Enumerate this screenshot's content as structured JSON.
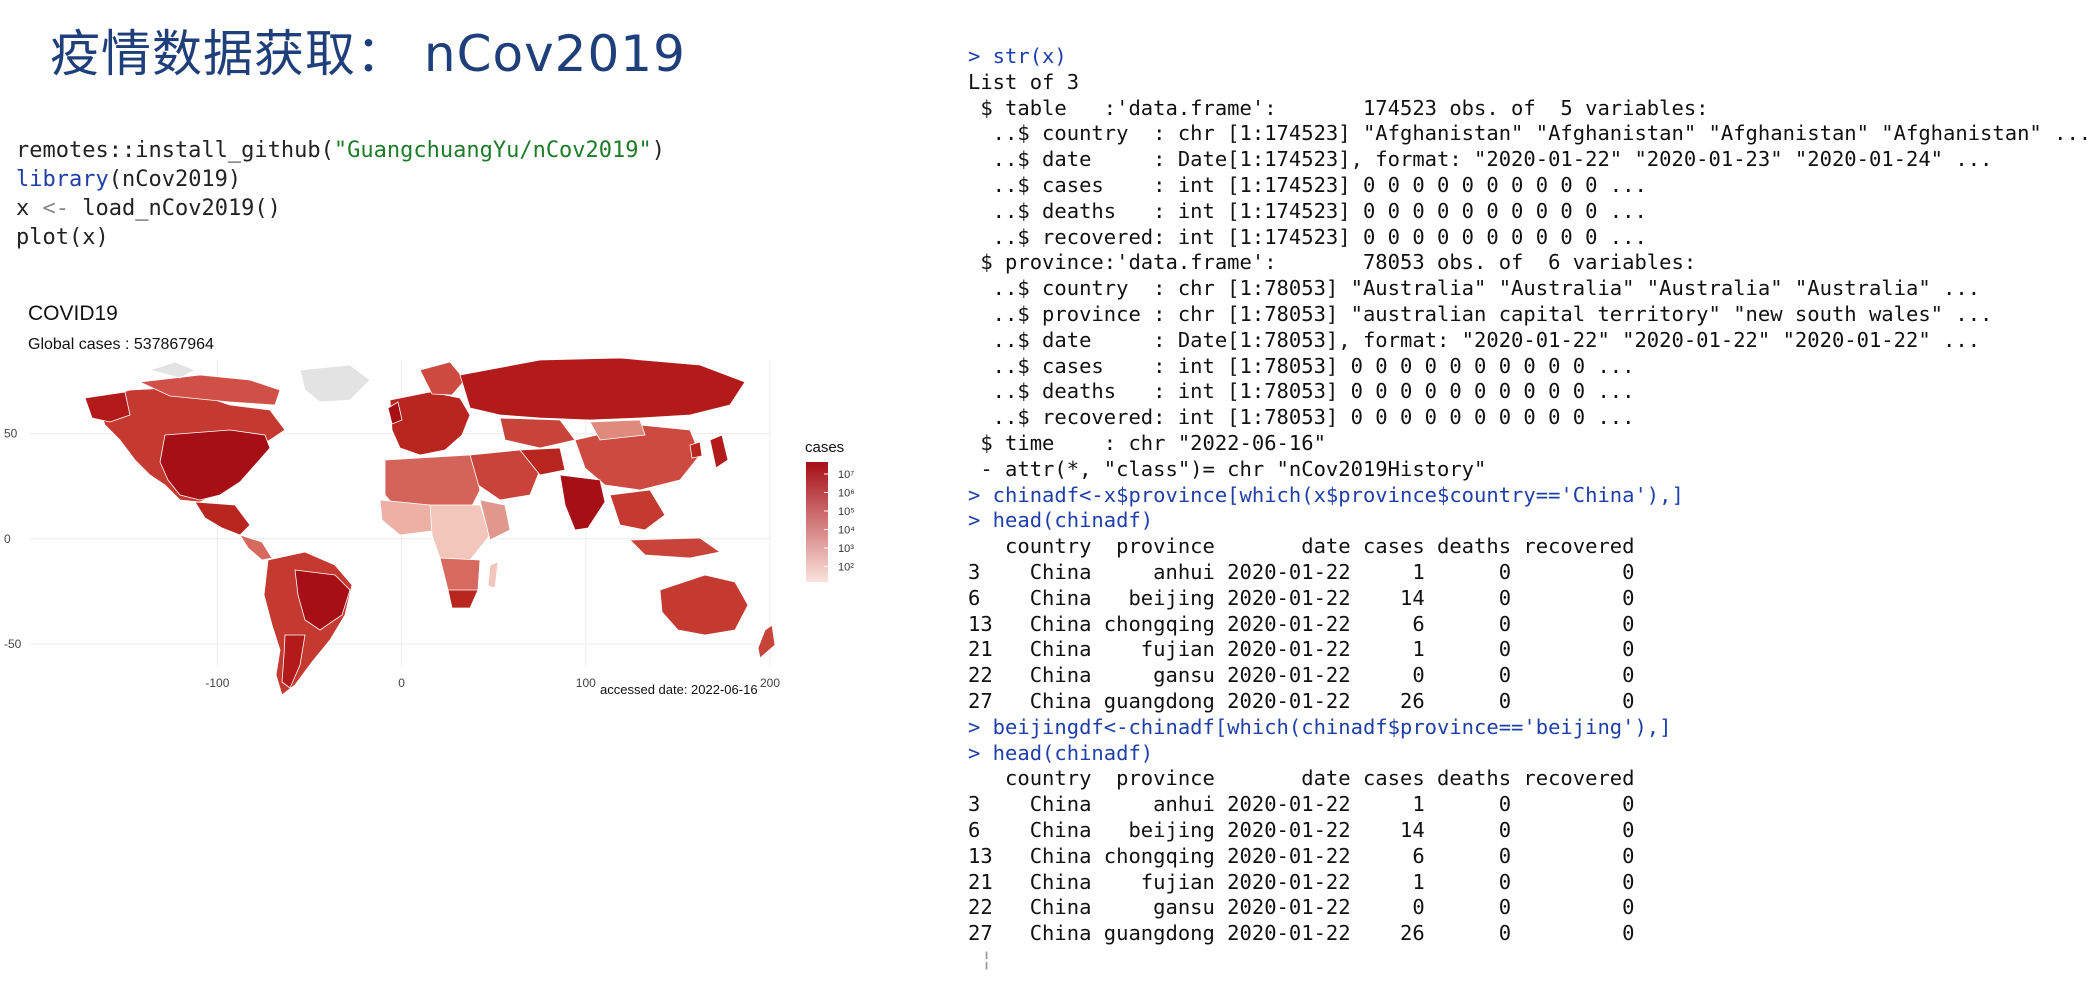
{
  "slide": {
    "title": "疫情数据获取： nCov2019"
  },
  "code": {
    "line1_fn": "remotes::install_github(",
    "line1_str": "\"GuangchuangYu/nCov2019\"",
    "line1_end": ")",
    "line2_kw": "library",
    "line2_rest": "(nCov2019)",
    "line3_a": "x ",
    "line3_op": "<-",
    "line3_b": " load_nCov2019()",
    "line4": "plot(x)"
  },
  "chart_data": {
    "type": "choropleth-map",
    "title": "COVID19",
    "subtitle": "Global cases : 537867964",
    "caption": "accessed date: 2022-06-16",
    "legend_title": "cases",
    "legend_placement": "right",
    "legend_ticks": [
      "10⁷",
      "10⁶",
      "10⁵",
      "10⁴",
      "10³",
      "10²"
    ],
    "color_scale": {
      "low": "#fbe3dd",
      "high": "#a50f15",
      "log10": true
    },
    "x_ticks": [
      -100,
      0,
      100,
      200
    ],
    "y_ticks": [
      50,
      0,
      -50
    ],
    "xlim": [
      -180,
      200
    ],
    "ylim": [
      -60,
      85
    ],
    "grid": true
  },
  "console": {
    "lines": [
      {
        "kind": "cmd",
        "text": "> str(x)"
      },
      {
        "kind": "out",
        "text": "List of 3"
      },
      {
        "kind": "out",
        "text": " $ table   :'data.frame':\t174523 obs. of  5 variables:"
      },
      {
        "kind": "out",
        "text": "  ..$ country  : chr [1:174523] \"Afghanistan\" \"Afghanistan\" \"Afghanistan\" \"Afghanistan\" ..."
      },
      {
        "kind": "out",
        "text": "  ..$ date     : Date[1:174523], format: \"2020-01-22\" \"2020-01-23\" \"2020-01-24\" ..."
      },
      {
        "kind": "out",
        "text": "  ..$ cases    : int [1:174523] 0 0 0 0 0 0 0 0 0 0 ..."
      },
      {
        "kind": "out",
        "text": "  ..$ deaths   : int [1:174523] 0 0 0 0 0 0 0 0 0 0 ..."
      },
      {
        "kind": "out",
        "text": "  ..$ recovered: int [1:174523] 0 0 0 0 0 0 0 0 0 0 ..."
      },
      {
        "kind": "out",
        "text": " $ province:'data.frame':\t78053 obs. of  6 variables:"
      },
      {
        "kind": "out",
        "text": "  ..$ country  : chr [1:78053] \"Australia\" \"Australia\" \"Australia\" \"Australia\" ..."
      },
      {
        "kind": "out",
        "text": "  ..$ province : chr [1:78053] \"australian capital territory\" \"new south wales\" ..."
      },
      {
        "kind": "out",
        "text": "  ..$ date     : Date[1:78053], format: \"2020-01-22\" \"2020-01-22\" \"2020-01-22\" ..."
      },
      {
        "kind": "out",
        "text": "  ..$ cases    : int [1:78053] 0 0 0 0 0 0 0 0 0 0 ..."
      },
      {
        "kind": "out",
        "text": "  ..$ deaths   : int [1:78053] 0 0 0 0 0 0 0 0 0 0 ..."
      },
      {
        "kind": "out",
        "text": "  ..$ recovered: int [1:78053] 0 0 0 0 0 0 0 0 0 0 ..."
      },
      {
        "kind": "out",
        "text": " $ time    : chr \"2022-06-16\""
      },
      {
        "kind": "out",
        "text": " - attr(*, \"class\")= chr \"nCov2019History\""
      },
      {
        "kind": "cmd",
        "text": "> chinadf<-x$province[which(x$province$country=='China'),]"
      },
      {
        "kind": "cmd",
        "text": "> head(chinadf)"
      },
      {
        "kind": "out",
        "text": "   country  province       date cases deaths recovered"
      },
      {
        "kind": "out",
        "text": "3    China     anhui 2020-01-22     1      0         0"
      },
      {
        "kind": "out",
        "text": "6    China   beijing 2020-01-22    14      0         0"
      },
      {
        "kind": "out",
        "text": "13   China chongqing 2020-01-22     6      0         0"
      },
      {
        "kind": "out",
        "text": "21   China    fujian 2020-01-22     1      0         0"
      },
      {
        "kind": "out",
        "text": "22   China     gansu 2020-01-22     0      0         0"
      },
      {
        "kind": "out",
        "text": "27   China guangdong 2020-01-22    26      0         0"
      },
      {
        "kind": "cmd",
        "text": "> beijingdf<-chinadf[which(chinadf$province=='beijing'),]"
      },
      {
        "kind": "cmd",
        "text": "> head(chinadf)"
      },
      {
        "kind": "out",
        "text": "   country  province       date cases deaths recovered"
      },
      {
        "kind": "out",
        "text": "3    China     anhui 2020-01-22     1      0         0"
      },
      {
        "kind": "out",
        "text": "6    China   beijing 2020-01-22    14      0         0"
      },
      {
        "kind": "out",
        "text": "13   China chongqing 2020-01-22     6      0         0"
      },
      {
        "kind": "out",
        "text": "21   China    fujian 2020-01-22     1      0         0"
      },
      {
        "kind": "out",
        "text": "22   China     gansu 2020-01-22     0      0         0"
      },
      {
        "kind": "out",
        "text": "27   China guangdong 2020-01-22    26      0         0"
      },
      {
        "kind": "cursor",
        "text": " ¦"
      }
    ]
  }
}
